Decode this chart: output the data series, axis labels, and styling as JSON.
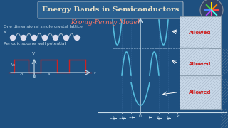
{
  "bg_color": "#1e5080",
  "title": "Energy Bands in Semiconductors",
  "subtitle": "Kronig-Perney Model",
  "title_color": "#e8e0c8",
  "subtitle_color": "#ff7766",
  "left_text1": "One dimensional single crystal lattice",
  "left_text2": "Periodic square well potential",
  "text_color": "#c8dce8",
  "allowed_color": "#cc2222",
  "axis_color": "#c8dce8",
  "curve_color": "#55bbdd",
  "square_well_color": "#cc2222",
  "grid_color": "#2a5a8e",
  "box_fill": "#ddeeff",
  "box_stripe": "#aabbcc"
}
